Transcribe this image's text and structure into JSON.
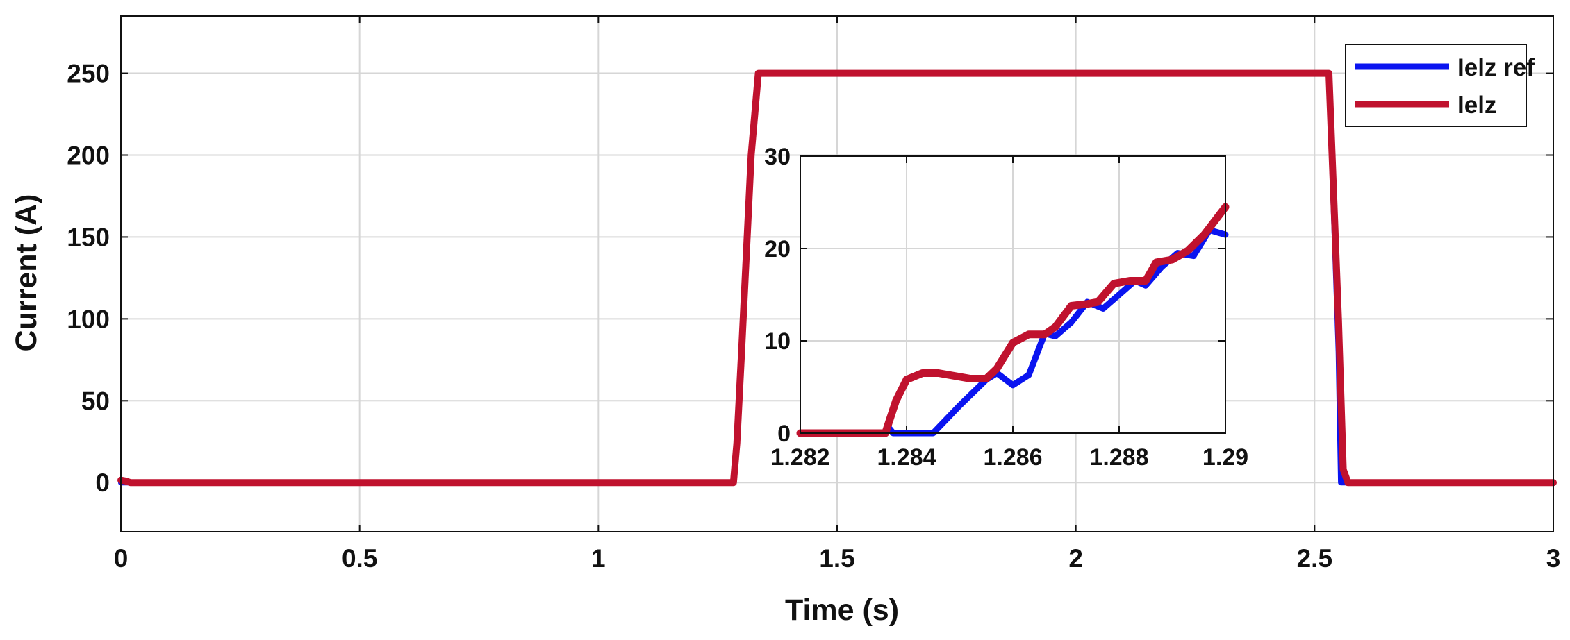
{
  "colors": {
    "ref": "#0a14f0",
    "meas": "#c0122e",
    "grid": "#d6d6d6",
    "axis": "#111111"
  },
  "chart_data": {
    "type": "line",
    "xlabel": "Time (s)",
    "ylabel": "Current (A)",
    "xlim": [
      0,
      3
    ],
    "ylim": [
      -30,
      285
    ],
    "xticks": [
      0,
      0.5,
      1,
      1.5,
      2,
      2.5,
      3
    ],
    "xtick_labels": [
      "0",
      "0.5",
      "1",
      "1.5",
      "2",
      "2.5",
      "3"
    ],
    "yticks": [
      0,
      50,
      100,
      150,
      200,
      250
    ],
    "ytick_labels": [
      "0",
      "50",
      "100",
      "150",
      "200",
      "250"
    ],
    "grid": true,
    "legend_position": "top-right",
    "series": [
      {
        "name": "Ielz ref",
        "color_key": "ref",
        "x": [
          0,
          1.282,
          1.284,
          1.29,
          1.3,
          1.32,
          1.335,
          1.35,
          2.5,
          2.53,
          2.55,
          2.555,
          2.56,
          3
        ],
        "y": [
          0,
          0,
          0,
          22,
          80,
          200,
          250,
          250,
          250,
          250,
          80,
          0,
          0,
          0
        ]
      },
      {
        "name": "Ielz",
        "color_key": "meas",
        "x": [
          0,
          0.01,
          0.02,
          1.283,
          1.29,
          1.3,
          1.32,
          1.335,
          1.35,
          2.5,
          2.53,
          2.55,
          2.56,
          2.57,
          3
        ],
        "y": [
          1.5,
          1,
          0,
          0,
          24,
          80,
          200,
          250,
          250,
          250,
          250,
          100,
          8,
          0,
          0
        ]
      }
    ],
    "inset": {
      "type": "line",
      "xlim": [
        1.282,
        1.29
      ],
      "ylim": [
        0,
        30
      ],
      "xticks": [
        1.282,
        1.284,
        1.286,
        1.288,
        1.29
      ],
      "xtick_labels": [
        "1.282",
        "1.284",
        "1.286",
        "1.288",
        "1.29"
      ],
      "yticks": [
        0,
        10,
        20,
        30
      ],
      "ytick_labels": [
        "0",
        "10",
        "20",
        "30"
      ],
      "grid": true,
      "series": [
        {
          "name": "Ielz ref",
          "color_key": "ref",
          "x": [
            1.282,
            1.2836,
            1.28365,
            1.28375,
            1.2845,
            1.285,
            1.2855,
            1.2857,
            1.286,
            1.2863,
            1.2866,
            1.2868,
            1.2871,
            1.2874,
            1.2877,
            1.288,
            1.2883,
            1.2885,
            1.2888,
            1.2891,
            1.2894,
            1.2897,
            1.29
          ],
          "y": [
            0,
            0,
            0.7,
            0,
            0,
            3,
            5.8,
            6.5,
            5.2,
            6.3,
            10.8,
            10.5,
            12,
            14.2,
            13.5,
            15,
            16.5,
            16,
            18,
            19.5,
            19.2,
            22,
            21.5
          ]
        },
        {
          "name": "Ielz",
          "color_key": "meas",
          "x": [
            1.282,
            1.2836,
            1.2838,
            1.284,
            1.2843,
            1.2846,
            1.2849,
            1.2852,
            1.2855,
            1.2857,
            1.286,
            1.2863,
            1.2866,
            1.2868,
            1.2871,
            1.2874,
            1.2876,
            1.2879,
            1.2882,
            1.2885,
            1.2887,
            1.289,
            1.2893,
            1.2896,
            1.29
          ],
          "y": [
            0,
            0,
            3.5,
            5.8,
            6.5,
            6.5,
            6.2,
            5.9,
            5.9,
            7,
            9.8,
            10.7,
            10.7,
            11.5,
            13.8,
            14,
            14.2,
            16.2,
            16.5,
            16.5,
            18.5,
            18.8,
            19.8,
            21.5,
            24.5
          ]
        }
      ]
    }
  }
}
